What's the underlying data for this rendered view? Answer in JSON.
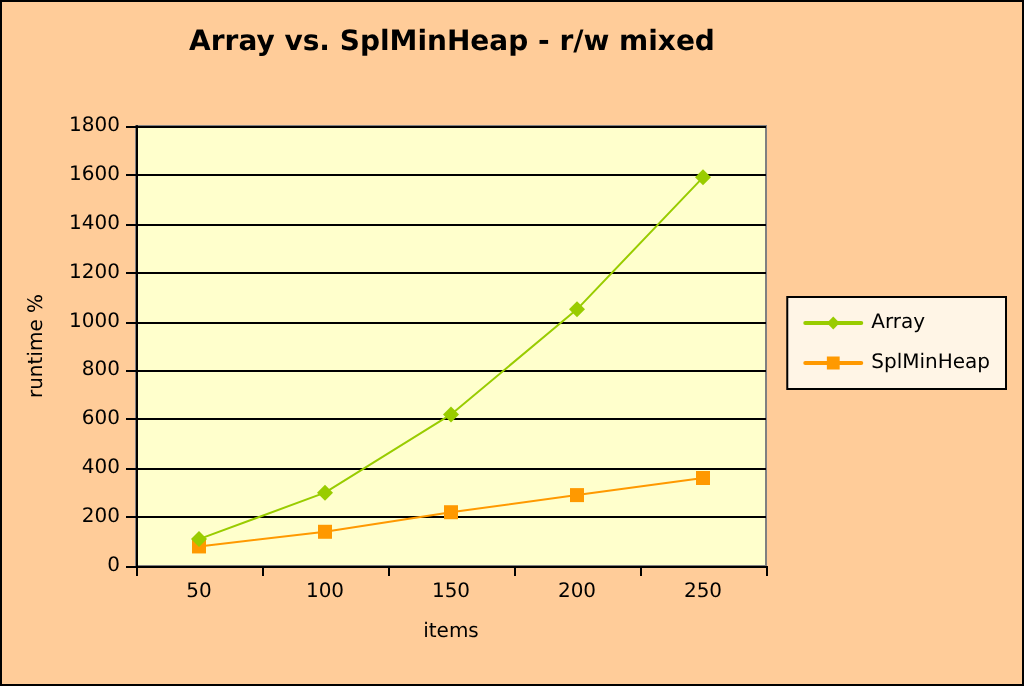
{
  "chart_data": {
    "type": "line",
    "title": "Array vs. SplMinHeap - r/w mixed",
    "xlabel": "items",
    "ylabel": "runtime %",
    "categories": [
      "50",
      "100",
      "150",
      "200",
      "250"
    ],
    "series": [
      {
        "name": "Array",
        "color": "#99cc00",
        "marker": "diamond",
        "values": [
          110,
          300,
          620,
          1050,
          1590
        ]
      },
      {
        "name": "SplMinHeap",
        "color": "#ff9900",
        "marker": "square",
        "values": [
          80,
          140,
          220,
          290,
          360
        ]
      }
    ],
    "ylim": [
      0,
      1800
    ],
    "yticks": [
      0,
      200,
      400,
      600,
      800,
      1000,
      1200,
      1400,
      1600,
      1800
    ],
    "grid": "y",
    "legend": "right",
    "line_style": "solid"
  }
}
